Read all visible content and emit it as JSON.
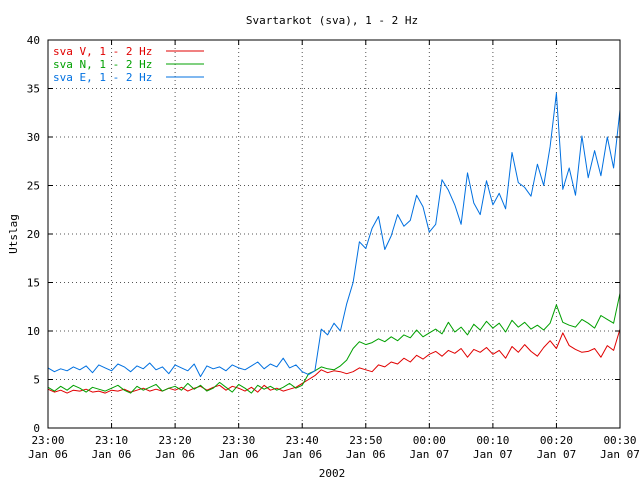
{
  "chart_data": {
    "type": "line",
    "title": "Svartarkot (sva), 1 - 2 Hz",
    "xlabel": "2002",
    "ylabel": "Utslag",
    "ylim": [
      0,
      40
    ],
    "xlim": [
      0,
      90
    ],
    "y_ticks": [
      "0",
      "5",
      "10",
      "15",
      "20",
      "25",
      "30",
      "35",
      "40"
    ],
    "x_ticks": [
      {
        "time": "23:00",
        "date": "Jan 06",
        "x": 0
      },
      {
        "time": "23:10",
        "date": "Jan 06",
        "x": 10
      },
      {
        "time": "23:20",
        "date": "Jan 06",
        "x": 20
      },
      {
        "time": "23:30",
        "date": "Jan 06",
        "x": 30
      },
      {
        "time": "23:40",
        "date": "Jan 06",
        "x": 40
      },
      {
        "time": "23:50",
        "date": "Jan 06",
        "x": 50
      },
      {
        "time": "00:00",
        "date": "Jan 07",
        "x": 60
      },
      {
        "time": "00:10",
        "date": "Jan 07",
        "x": 70
      },
      {
        "time": "00:20",
        "date": "Jan 07",
        "x": 80
      },
      {
        "time": "00:30",
        "date": "Jan 07",
        "x": 90
      }
    ],
    "grid": true,
    "legend_position": "top-left",
    "series": [
      {
        "name": "sva V, 1 - 2 Hz",
        "color": "#e00000",
        "values": [
          [
            0,
            4.0
          ],
          [
            1,
            3.7
          ],
          [
            2,
            3.9
          ],
          [
            3,
            3.6
          ],
          [
            4,
            3.9
          ],
          [
            5,
            3.8
          ],
          [
            6,
            4.0
          ],
          [
            7,
            3.7
          ],
          [
            8,
            3.8
          ],
          [
            9,
            3.6
          ],
          [
            10,
            3.9
          ],
          [
            11,
            3.8
          ],
          [
            12,
            4.0
          ],
          [
            13,
            3.7
          ],
          [
            14,
            3.9
          ],
          [
            15,
            4.1
          ],
          [
            16,
            3.8
          ],
          [
            17,
            4.0
          ],
          [
            18,
            3.8
          ],
          [
            19,
            4.1
          ],
          [
            20,
            3.9
          ],
          [
            21,
            4.2
          ],
          [
            22,
            3.8
          ],
          [
            23,
            4.1
          ],
          [
            24,
            4.3
          ],
          [
            25,
            3.9
          ],
          [
            26,
            4.2
          ],
          [
            27,
            4.4
          ],
          [
            28,
            3.9
          ],
          [
            29,
            4.3
          ],
          [
            30,
            4.1
          ],
          [
            31,
            3.8
          ],
          [
            32,
            4.2
          ],
          [
            33,
            3.7
          ],
          [
            34,
            4.4
          ],
          [
            35,
            3.9
          ],
          [
            36,
            4.1
          ],
          [
            37,
            3.8
          ],
          [
            38,
            4.0
          ],
          [
            39,
            4.2
          ],
          [
            40,
            4.6
          ],
          [
            41,
            5.0
          ],
          [
            42,
            5.4
          ],
          [
            43,
            6.0
          ],
          [
            44,
            5.7
          ],
          [
            45,
            5.9
          ],
          [
            46,
            5.8
          ],
          [
            47,
            5.6
          ],
          [
            48,
            5.8
          ],
          [
            49,
            6.2
          ],
          [
            50,
            6.0
          ],
          [
            51,
            5.8
          ],
          [
            52,
            6.5
          ],
          [
            53,
            6.3
          ],
          [
            54,
            6.8
          ],
          [
            55,
            6.6
          ],
          [
            56,
            7.2
          ],
          [
            57,
            6.8
          ],
          [
            58,
            7.5
          ],
          [
            59,
            7.1
          ],
          [
            60,
            7.6
          ],
          [
            61,
            7.9
          ],
          [
            62,
            7.4
          ],
          [
            63,
            8.0
          ],
          [
            64,
            7.7
          ],
          [
            65,
            8.2
          ],
          [
            66,
            7.3
          ],
          [
            67,
            8.1
          ],
          [
            68,
            7.8
          ],
          [
            69,
            8.3
          ],
          [
            70,
            7.6
          ],
          [
            71,
            8.0
          ],
          [
            72,
            7.2
          ],
          [
            73,
            8.4
          ],
          [
            74,
            7.8
          ],
          [
            75,
            8.6
          ],
          [
            76,
            7.9
          ],
          [
            77,
            7.4
          ],
          [
            78,
            8.3
          ],
          [
            79,
            9.0
          ],
          [
            80,
            8.2
          ],
          [
            81,
            9.8
          ],
          [
            82,
            8.5
          ],
          [
            83,
            8.1
          ],
          [
            84,
            7.8
          ],
          [
            85,
            7.9
          ],
          [
            86,
            8.2
          ],
          [
            87,
            7.3
          ],
          [
            88,
            8.5
          ],
          [
            89,
            8.0
          ],
          [
            90,
            10.2
          ]
        ]
      },
      {
        "name": "sva N, 1 - 2 Hz",
        "color": "#00a000",
        "values": [
          [
            0,
            4.2
          ],
          [
            1,
            3.8
          ],
          [
            2,
            4.3
          ],
          [
            3,
            3.9
          ],
          [
            4,
            4.4
          ],
          [
            5,
            4.1
          ],
          [
            6,
            3.7
          ],
          [
            7,
            4.2
          ],
          [
            8,
            4.0
          ],
          [
            9,
            3.8
          ],
          [
            10,
            4.1
          ],
          [
            11,
            4.4
          ],
          [
            12,
            3.9
          ],
          [
            13,
            3.6
          ],
          [
            14,
            4.3
          ],
          [
            15,
            3.9
          ],
          [
            16,
            4.2
          ],
          [
            17,
            4.5
          ],
          [
            18,
            3.8
          ],
          [
            19,
            4.1
          ],
          [
            20,
            4.3
          ],
          [
            21,
            3.9
          ],
          [
            22,
            4.6
          ],
          [
            23,
            4.0
          ],
          [
            24,
            4.4
          ],
          [
            25,
            3.8
          ],
          [
            26,
            4.1
          ],
          [
            27,
            4.7
          ],
          [
            28,
            4.2
          ],
          [
            29,
            3.7
          ],
          [
            30,
            4.5
          ],
          [
            31,
            4.1
          ],
          [
            32,
            3.6
          ],
          [
            33,
            4.4
          ],
          [
            34,
            4.0
          ],
          [
            35,
            4.3
          ],
          [
            36,
            3.9
          ],
          [
            37,
            4.2
          ],
          [
            38,
            4.6
          ],
          [
            39,
            4.1
          ],
          [
            40,
            4.4
          ],
          [
            41,
            5.6
          ],
          [
            42,
            5.9
          ],
          [
            43,
            6.3
          ],
          [
            44,
            6.1
          ],
          [
            45,
            6.0
          ],
          [
            46,
            6.4
          ],
          [
            47,
            7.0
          ],
          [
            48,
            8.2
          ],
          [
            49,
            8.9
          ],
          [
            50,
            8.6
          ],
          [
            51,
            8.8
          ],
          [
            52,
            9.2
          ],
          [
            53,
            8.9
          ],
          [
            54,
            9.4
          ],
          [
            55,
            9.0
          ],
          [
            56,
            9.6
          ],
          [
            57,
            9.3
          ],
          [
            58,
            10.1
          ],
          [
            59,
            9.4
          ],
          [
            60,
            9.8
          ],
          [
            61,
            10.2
          ],
          [
            62,
            9.7
          ],
          [
            63,
            10.9
          ],
          [
            64,
            9.9
          ],
          [
            65,
            10.4
          ],
          [
            66,
            9.6
          ],
          [
            67,
            10.7
          ],
          [
            68,
            10.1
          ],
          [
            69,
            11.0
          ],
          [
            70,
            10.3
          ],
          [
            71,
            10.8
          ],
          [
            72,
            9.9
          ],
          [
            73,
            11.1
          ],
          [
            74,
            10.4
          ],
          [
            75,
            10.9
          ],
          [
            76,
            10.2
          ],
          [
            77,
            10.6
          ],
          [
            78,
            10.1
          ],
          [
            79,
            10.8
          ],
          [
            80,
            12.7
          ],
          [
            81,
            10.9
          ],
          [
            82,
            10.6
          ],
          [
            83,
            10.4
          ],
          [
            84,
            11.2
          ],
          [
            85,
            10.8
          ],
          [
            86,
            10.3
          ],
          [
            87,
            11.6
          ],
          [
            88,
            11.2
          ],
          [
            89,
            10.8
          ],
          [
            90,
            13.9
          ]
        ]
      },
      {
        "name": "sva E, 1 - 2 Hz",
        "color": "#0070e0",
        "values": [
          [
            0,
            6.2
          ],
          [
            1,
            5.8
          ],
          [
            2,
            6.1
          ],
          [
            3,
            5.9
          ],
          [
            4,
            6.3
          ],
          [
            5,
            6.0
          ],
          [
            6,
            6.4
          ],
          [
            7,
            5.7
          ],
          [
            8,
            6.5
          ],
          [
            9,
            6.2
          ],
          [
            10,
            5.9
          ],
          [
            11,
            6.6
          ],
          [
            12,
            6.3
          ],
          [
            13,
            5.8
          ],
          [
            14,
            6.4
          ],
          [
            15,
            6.1
          ],
          [
            16,
            6.7
          ],
          [
            17,
            6.0
          ],
          [
            18,
            6.3
          ],
          [
            19,
            5.6
          ],
          [
            20,
            6.5
          ],
          [
            21,
            6.2
          ],
          [
            22,
            5.9
          ],
          [
            23,
            6.6
          ],
          [
            24,
            5.3
          ],
          [
            25,
            6.4
          ],
          [
            26,
            6.1
          ],
          [
            27,
            6.3
          ],
          [
            28,
            5.9
          ],
          [
            29,
            6.5
          ],
          [
            30,
            6.2
          ],
          [
            31,
            6.0
          ],
          [
            32,
            6.4
          ],
          [
            33,
            6.8
          ],
          [
            34,
            6.1
          ],
          [
            35,
            6.6
          ],
          [
            36,
            6.3
          ],
          [
            37,
            7.2
          ],
          [
            38,
            6.2
          ],
          [
            39,
            6.5
          ],
          [
            40,
            5.8
          ],
          [
            41,
            5.5
          ],
          [
            42,
            5.9
          ],
          [
            43,
            10.2
          ],
          [
            44,
            9.6
          ],
          [
            45,
            10.8
          ],
          [
            46,
            10.0
          ],
          [
            47,
            12.8
          ],
          [
            48,
            15.0
          ],
          [
            49,
            19.2
          ],
          [
            50,
            18.5
          ],
          [
            51,
            20.6
          ],
          [
            52,
            21.8
          ],
          [
            53,
            18.4
          ],
          [
            54,
            19.8
          ],
          [
            55,
            22.0
          ],
          [
            56,
            20.8
          ],
          [
            57,
            21.4
          ],
          [
            58,
            24.0
          ],
          [
            59,
            22.8
          ],
          [
            60,
            20.2
          ],
          [
            61,
            21.0
          ],
          [
            62,
            25.6
          ],
          [
            63,
            24.5
          ],
          [
            64,
            23.0
          ],
          [
            65,
            21.0
          ],
          [
            66,
            26.3
          ],
          [
            67,
            23.2
          ],
          [
            68,
            22.0
          ],
          [
            69,
            25.5
          ],
          [
            70,
            23.0
          ],
          [
            71,
            24.2
          ],
          [
            72,
            22.6
          ],
          [
            73,
            28.4
          ],
          [
            74,
            25.3
          ],
          [
            75,
            24.8
          ],
          [
            76,
            23.9
          ],
          [
            77,
            27.2
          ],
          [
            78,
            25.0
          ],
          [
            79,
            29.0
          ],
          [
            80,
            34.5
          ],
          [
            81,
            24.6
          ],
          [
            82,
            26.8
          ],
          [
            83,
            24.0
          ],
          [
            84,
            30.1
          ],
          [
            85,
            25.8
          ],
          [
            86,
            28.6
          ],
          [
            87,
            26.0
          ],
          [
            88,
            30.0
          ],
          [
            89,
            26.8
          ],
          [
            90,
            32.8
          ]
        ]
      }
    ]
  }
}
